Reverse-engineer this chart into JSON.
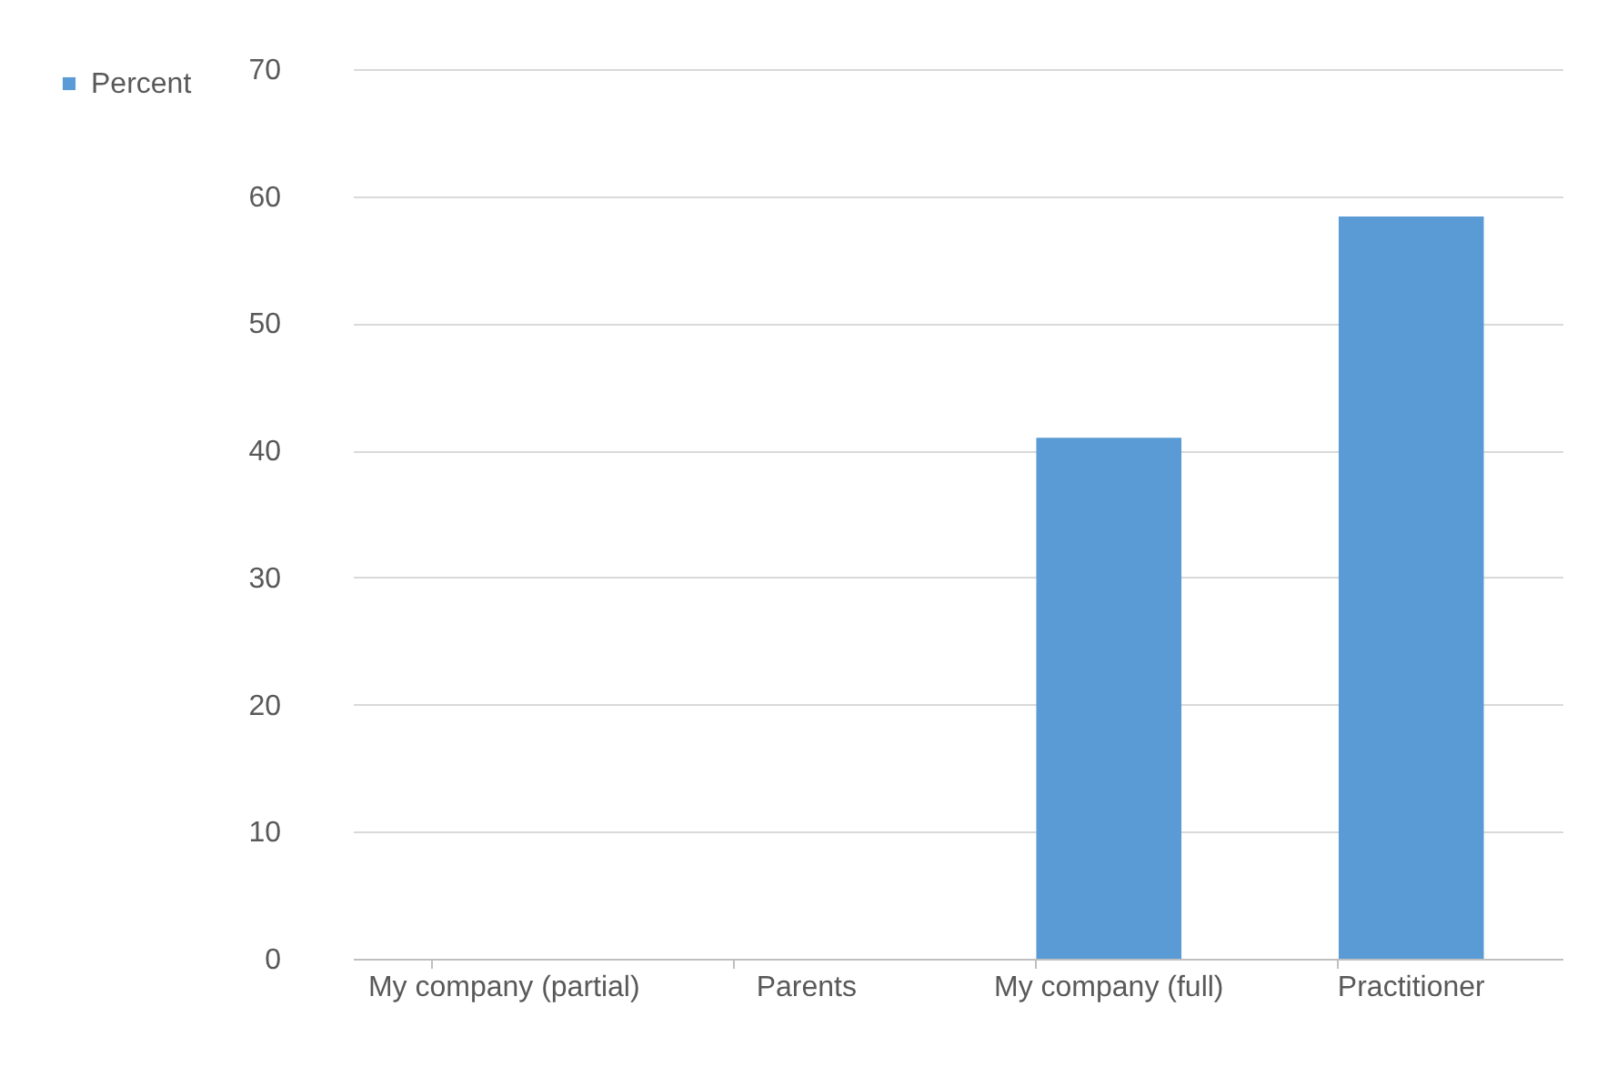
{
  "chart_data": {
    "type": "bar",
    "categories": [
      "My company (partial)",
      "Parents",
      "My company (full)",
      "Practitioner"
    ],
    "series": [
      {
        "name": "Percent",
        "color": "#5b9bd5",
        "values": [
          0,
          0,
          41,
          58.4
        ]
      }
    ],
    "ylim": [
      0,
      70
    ],
    "yticks": [
      0,
      10,
      20,
      30,
      40,
      50,
      60,
      70
    ],
    "grid": "y",
    "legend": "left"
  }
}
